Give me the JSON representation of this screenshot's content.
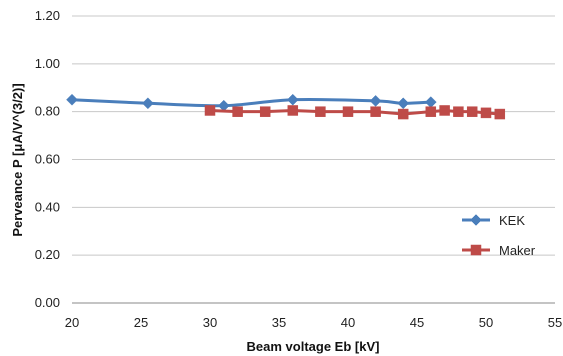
{
  "chart_data": {
    "type": "line",
    "xlabel": "Beam voltage  Eb [kV]",
    "ylabel": "Perveance   P [μA/V^(3/2)]",
    "xlim": [
      20,
      55
    ],
    "ylim": [
      0.0,
      1.2
    ],
    "x_ticks": [
      "20",
      "25",
      "30",
      "35",
      "40",
      "45",
      "50",
      "55"
    ],
    "y_ticks": [
      "0.00",
      "0.20",
      "0.40",
      "0.60",
      "0.80",
      "1.00",
      "1.20"
    ],
    "grid": "horizontal",
    "legend_position": "right",
    "series": [
      {
        "name": "KEK",
        "color": "#4a7ebb",
        "marker": "diamond",
        "smooth": true,
        "points": [
          {
            "x": 20,
            "y": 0.85
          },
          {
            "x": 25.5,
            "y": 0.835
          },
          {
            "x": 31,
            "y": 0.825
          },
          {
            "x": 36,
            "y": 0.85
          },
          {
            "x": 42,
            "y": 0.845
          },
          {
            "x": 44,
            "y": 0.835
          },
          {
            "x": 46,
            "y": 0.84
          }
        ]
      },
      {
        "name": "Maker",
        "color": "#be4b48",
        "marker": "square",
        "smooth": false,
        "points": [
          {
            "x": 30,
            "y": 0.805
          },
          {
            "x": 32,
            "y": 0.8
          },
          {
            "x": 34,
            "y": 0.8
          },
          {
            "x": 36,
            "y": 0.805
          },
          {
            "x": 38,
            "y": 0.8
          },
          {
            "x": 40,
            "y": 0.8
          },
          {
            "x": 42,
            "y": 0.8
          },
          {
            "x": 44,
            "y": 0.79
          },
          {
            "x": 46,
            "y": 0.8
          },
          {
            "x": 47,
            "y": 0.805
          },
          {
            "x": 48,
            "y": 0.8
          },
          {
            "x": 49,
            "y": 0.8
          },
          {
            "x": 50,
            "y": 0.795
          },
          {
            "x": 51,
            "y": 0.79
          }
        ]
      }
    ]
  }
}
